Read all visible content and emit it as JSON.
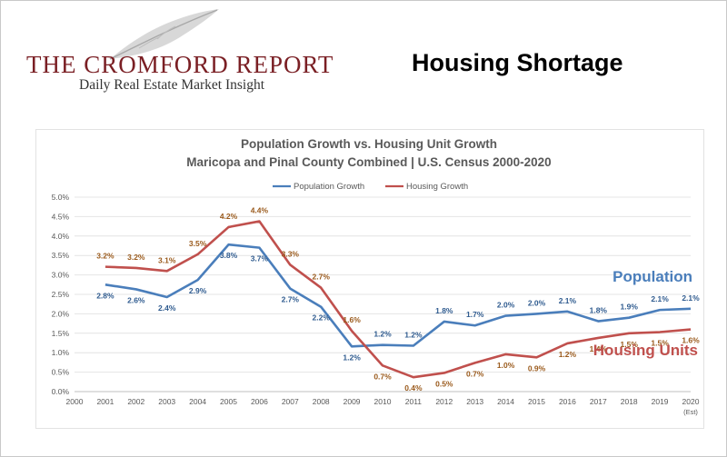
{
  "header": {
    "logo_title": "THE CROMFORD REPORT",
    "logo_subtitle": "Daily Real Estate Market Insight",
    "headline": "Housing Shortage"
  },
  "chart_data": {
    "type": "line",
    "title": "Population Growth vs. Housing Unit Growth",
    "subtitle": "Maricopa and Pinal County Combined | U.S. Census 2000-2020",
    "x": [
      "2000",
      "2001",
      "2002",
      "2003",
      "2004",
      "2005",
      "2006",
      "2007",
      "2008",
      "2009",
      "2010",
      "2011",
      "2012",
      "2013",
      "2014",
      "2015",
      "2016",
      "2017",
      "2018",
      "2019",
      "2020"
    ],
    "x_note": "(Est)",
    "y_ticks": [
      "0.0%",
      "0.5%",
      "1.0%",
      "1.5%",
      "2.0%",
      "2.5%",
      "3.0%",
      "3.5%",
      "4.0%",
      "4.5%",
      "5.0%"
    ],
    "ylim": [
      0,
      5
    ],
    "grid": true,
    "legend_position": "top",
    "series": [
      {
        "name": "Population Growth",
        "color": "#4a7ebb",
        "values": [
          null,
          2.75,
          2.63,
          2.43,
          2.87,
          3.78,
          3.7,
          2.65,
          2.18,
          1.16,
          1.2,
          1.18,
          1.8,
          1.7,
          1.95,
          2.0,
          2.06,
          1.81,
          1.9,
          2.1,
          2.13
        ],
        "labels": [
          "",
          "2.8%",
          "2.6%",
          "2.4%",
          "2.9%",
          "3.8%",
          "3.7%",
          "2.7%",
          "2.2%",
          "1.2%",
          "1.2%",
          "1.2%",
          "1.8%",
          "1.7%",
          "2.0%",
          "2.0%",
          "2.1%",
          "1.8%",
          "1.9%",
          "2.1%",
          "2.1%"
        ],
        "annotation": "Population"
      },
      {
        "name": "Housing Growth",
        "color": "#c0504d",
        "values": [
          null,
          3.21,
          3.18,
          3.1,
          3.53,
          4.23,
          4.38,
          3.26,
          2.67,
          1.56,
          0.67,
          0.37,
          0.48,
          0.74,
          0.96,
          0.88,
          1.24,
          1.38,
          1.5,
          1.53,
          1.6
        ],
        "labels": [
          "",
          "3.2%",
          "3.2%",
          "3.1%",
          "3.5%",
          "4.2%",
          "4.4%",
          "3.3%",
          "2.7%",
          "1.6%",
          "0.7%",
          "0.4%",
          "0.5%",
          "0.7%",
          "1.0%",
          "0.9%",
          "1.2%",
          "1.4%",
          "1.5%",
          "1.5%",
          "1.6%"
        ],
        "annotation": "Housing Units"
      }
    ]
  }
}
